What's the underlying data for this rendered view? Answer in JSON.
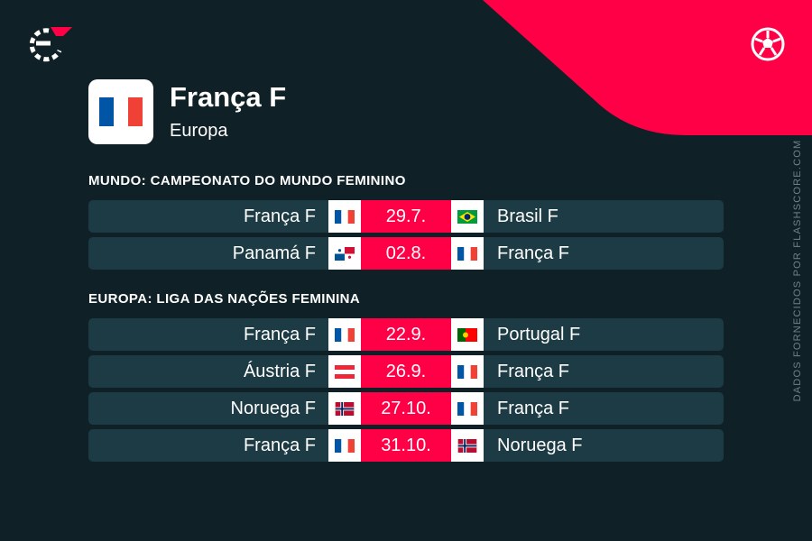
{
  "branding": {
    "logo_icon": "flashscore-logo-icon",
    "sport_icon": "soccer-ball-icon",
    "accent_color": "#ff0046",
    "credit": "DADOS FORNECIDOS POR FLASHSCORE.COM"
  },
  "team": {
    "name": "França F",
    "region": "Europa",
    "flag": "fr"
  },
  "sections": [
    {
      "title": "MUNDO: CAMPEONATO DO MUNDO FEMININO",
      "matches": [
        {
          "home": "França F",
          "home_flag": "fr",
          "date": "29.7.",
          "away": "Brasil F",
          "away_flag": "br"
        },
        {
          "home": "Panamá F",
          "home_flag": "pa",
          "date": "02.8.",
          "away": "França F",
          "away_flag": "fr"
        }
      ]
    },
    {
      "title": "EUROPA: LIGA DAS NAÇÕES FEMININA",
      "matches": [
        {
          "home": "França F",
          "home_flag": "fr",
          "date": "22.9.",
          "away": "Portugal F",
          "away_flag": "pt"
        },
        {
          "home": "Áustria F",
          "home_flag": "at",
          "date": "26.9.",
          "away": "França F",
          "away_flag": "fr"
        },
        {
          "home": "Noruega F",
          "home_flag": "no",
          "date": "27.10.",
          "away": "França F",
          "away_flag": "fr"
        },
        {
          "home": "França F",
          "home_flag": "fr",
          "date": "31.10.",
          "away": "Noruega F",
          "away_flag": "no"
        }
      ]
    }
  ]
}
